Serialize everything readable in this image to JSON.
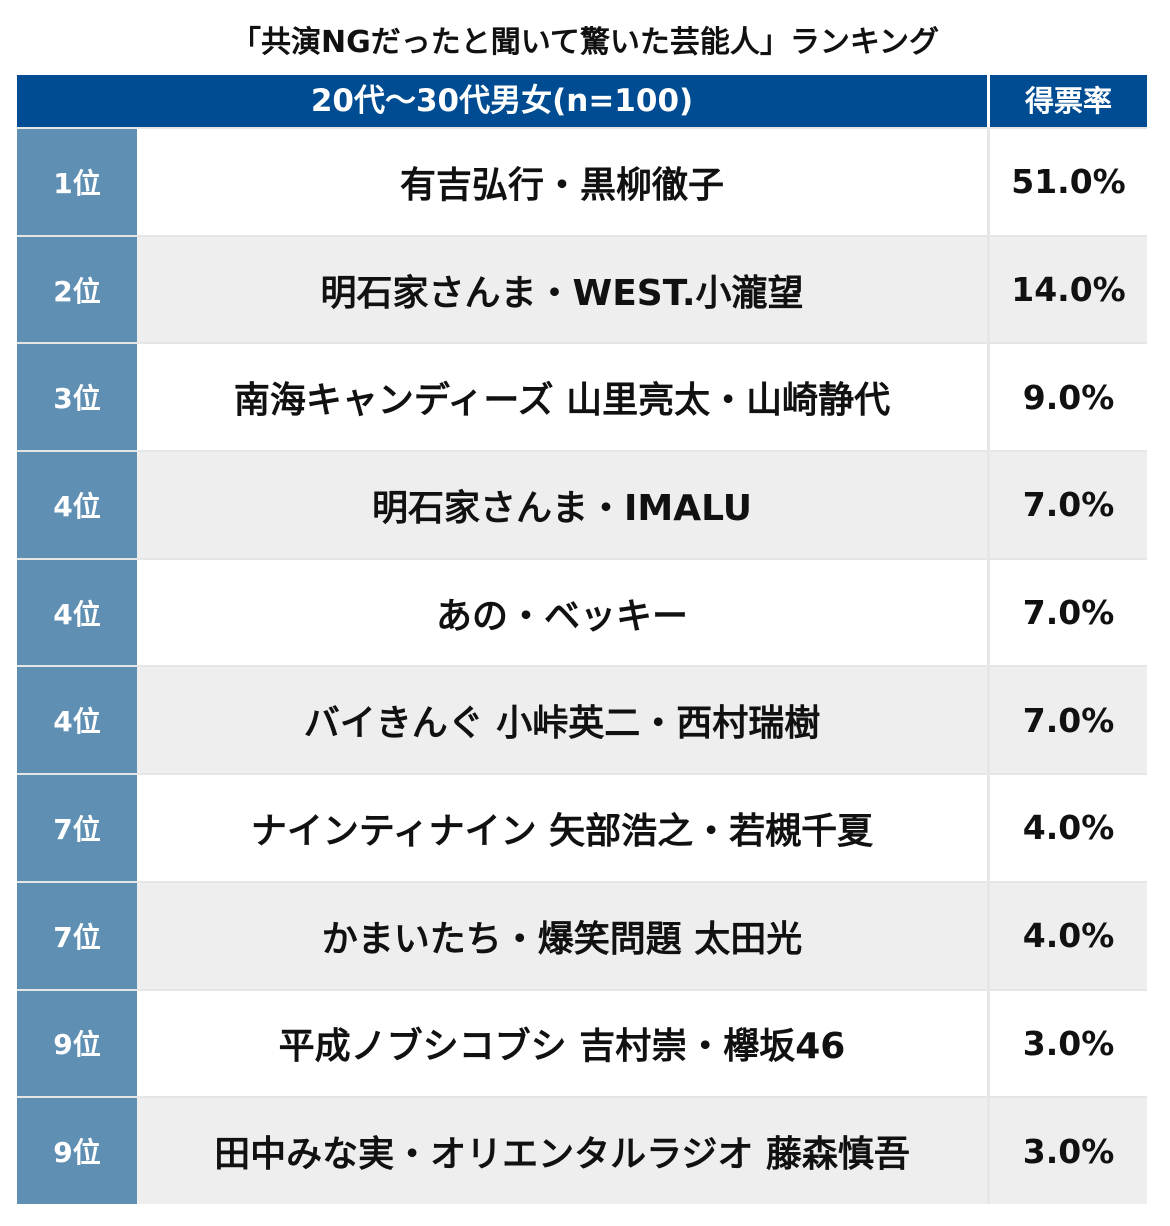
{
  "chart_data": {
    "type": "table",
    "title": "「共演NGだったと聞いて驚いた芸能人」ランキング",
    "header": {
      "group": "20代〜30代男女(n=100)",
      "value": "得票率"
    },
    "rows": [
      {
        "rank": "1位",
        "name": "有吉弘行・黒柳徹子",
        "value": "51.0%",
        "percent": 51.0
      },
      {
        "rank": "2位",
        "name": "明石家さんま・WEST.小瀧望",
        "value": "14.0%",
        "percent": 14.0
      },
      {
        "rank": "3位",
        "name": "南海キャンディーズ 山里亮太・山崎静代",
        "value": "9.0%",
        "percent": 9.0
      },
      {
        "rank": "4位",
        "name": "明石家さんま・IMALU",
        "value": "7.0%",
        "percent": 7.0
      },
      {
        "rank": "4位",
        "name": "あの・ベッキー",
        "value": "7.0%",
        "percent": 7.0
      },
      {
        "rank": "4位",
        "name": "バイきんぐ 小峠英二・西村瑞樹",
        "value": "7.0%",
        "percent": 7.0
      },
      {
        "rank": "7位",
        "name": "ナインティナイン 矢部浩之・若槻千夏",
        "value": "4.0%",
        "percent": 4.0
      },
      {
        "rank": "7位",
        "name": "かまいたち・爆笑問題 太田光",
        "value": "4.0%",
        "percent": 4.0
      },
      {
        "rank": "9位",
        "name": "平成ノブシコブシ 吉村崇・欅坂46",
        "value": "3.0%",
        "percent": 3.0
      },
      {
        "rank": "9位",
        "name": "田中みな実・オリエンタルラジオ 藤森慎吾",
        "value": "3.0%",
        "percent": 3.0
      }
    ]
  },
  "colors": {
    "header_bg": "#004c93",
    "rank_bg": "#5f90b4",
    "row_alt_bg": "#eeeeee"
  }
}
